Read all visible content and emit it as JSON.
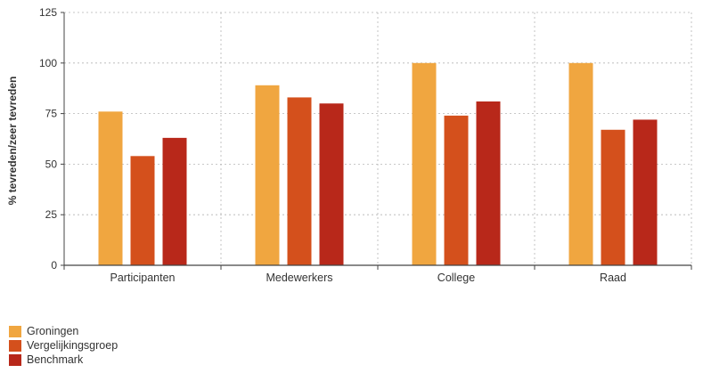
{
  "chart_data": {
    "type": "bar",
    "categories": [
      "Participanten",
      "Medewerkers",
      "College",
      "Raad"
    ],
    "series": [
      {
        "name": "Groningen",
        "values": [
          76,
          89,
          100,
          100
        ],
        "color": "#f0a640"
      },
      {
        "name": "Vergelijkingsgroep",
        "values": [
          54,
          83,
          74,
          67
        ],
        "color": "#d4501c"
      },
      {
        "name": "Benchmark",
        "values": [
          63,
          80,
          81,
          72
        ],
        "color": "#b8281a"
      }
    ],
    "ylabel": "% tevreden/zeer tevreden",
    "xlabel": "",
    "ylim": [
      0,
      125
    ],
    "yticks": [
      "0",
      "25",
      "50",
      "75",
      "100",
      "125"
    ],
    "grid": true,
    "legend_position": "bottom-left"
  }
}
